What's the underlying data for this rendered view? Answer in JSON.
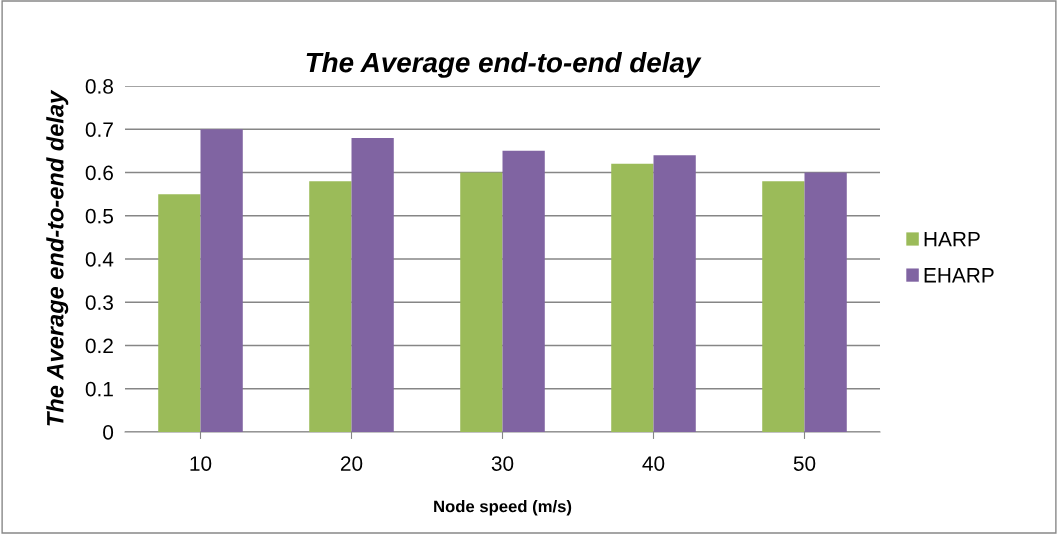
{
  "chart_data": {
    "type": "bar",
    "title": "The Average end-to-end delay",
    "xlabel": "Node speed (m/s)",
    "ylabel": "The Average end-to-end delay",
    "categories": [
      "10",
      "20",
      "30",
      "40",
      "50"
    ],
    "series": [
      {
        "name": "HARP",
        "color": "#9bbb59",
        "values": [
          0.55,
          0.58,
          0.6,
          0.62,
          0.58
        ]
      },
      {
        "name": "EHARP",
        "color": "#8064a2",
        "values": [
          0.7,
          0.68,
          0.65,
          0.64,
          0.6
        ]
      }
    ],
    "ylim": [
      0,
      0.8
    ],
    "yticks": [
      {
        "value": 0,
        "label": "0"
      },
      0.1,
      0.2,
      0.3,
      0.4,
      0.5,
      0.6,
      0.7,
      0.8
    ],
    "grid": "y",
    "legend": "right"
  }
}
